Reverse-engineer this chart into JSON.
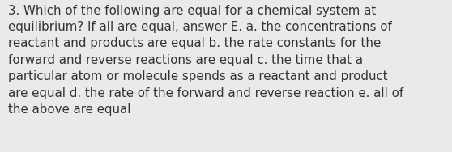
{
  "lines": [
    "3. Which of the following are equal for a chemical system at",
    "equilibrium? If all are equal, answer E. a. the concentrations of",
    "reactant and products are equal b. the rate constants for the",
    "forward and reverse reactions are equal c. the time that a",
    "particular atom or molecule spends as a reactant and product",
    "are equal d. the rate of the forward and reverse reaction e. all of",
    "the above are equal"
  ],
  "background_color": "#eaeaea",
  "text_color": "#333333",
  "font_size": 10.8,
  "font_family": "DejaVu Sans"
}
